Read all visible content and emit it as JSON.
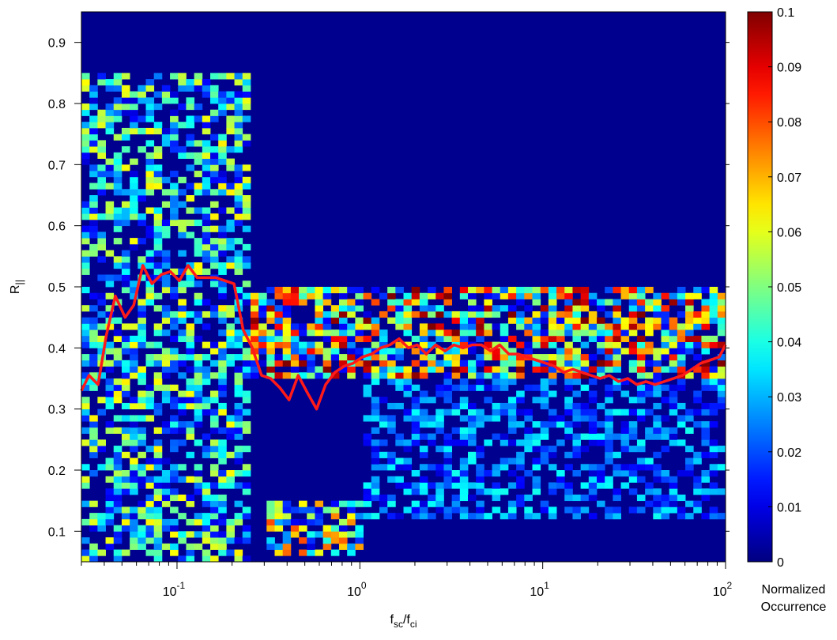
{
  "chart_data": [
    {
      "type": "heatmap",
      "xlabel": {
        "main": "f",
        "sub1": "sc",
        "slash": "/f",
        "sub2": "ci"
      },
      "ylabel": {
        "main": "R",
        "sub": "||"
      },
      "x_scale": "log",
      "xlim": [
        0.03,
        100
      ],
      "ylim": [
        0.05,
        0.95
      ],
      "x_ticks": [
        {
          "value": 0.1,
          "base": "10",
          "exp": "-1"
        },
        {
          "value": 1,
          "base": "10",
          "exp": "0"
        },
        {
          "value": 10,
          "base": "10",
          "exp": "1"
        },
        {
          "value": 100,
          "base": "10",
          "exp": "2"
        }
      ],
      "y_ticks": [
        {
          "value": 0.1,
          "label": "0.1"
        },
        {
          "value": 0.2,
          "label": "0.2"
        },
        {
          "value": 0.3,
          "label": "0.3"
        },
        {
          "value": 0.4,
          "label": "0.4"
        },
        {
          "value": 0.5,
          "label": "0.5"
        },
        {
          "value": 0.6,
          "label": "0.6"
        },
        {
          "value": 0.7,
          "label": "0.7"
        },
        {
          "value": 0.8,
          "label": "0.8"
        },
        {
          "value": 0.9,
          "label": "0.9"
        }
      ],
      "grid": false,
      "colormap": "jet",
      "background_color": "#00008f",
      "heatmap_bins": {
        "x_bins": 80,
        "y_bins": 90
      },
      "heatmap_density_bands": [
        {
          "x_range": [
            0.03,
            0.25
          ],
          "y_range": [
            0.05,
            0.85
          ],
          "intensity": 0.45
        },
        {
          "x_range": [
            0.3,
            1.0
          ],
          "y_range": [
            0.06,
            0.15
          ],
          "intensity": 0.6
        },
        {
          "x_range": [
            0.25,
            100
          ],
          "y_range": [
            0.35,
            0.5
          ],
          "intensity": 0.75
        },
        {
          "x_range": [
            1,
            100
          ],
          "y_range": [
            0.12,
            0.35
          ],
          "intensity": 0.25
        }
      ],
      "series": [
        {
          "color": "#ff1a1a",
          "x": [
            0.03,
            0.033,
            0.037,
            0.041,
            0.046,
            0.052,
            0.058,
            0.065,
            0.073,
            0.082,
            0.092,
            0.103,
            0.115,
            0.129,
            0.145,
            0.163,
            0.183,
            0.205,
            0.23,
            0.258,
            0.29,
            0.325,
            0.365,
            0.41,
            0.46,
            0.52,
            0.58,
            0.65,
            0.73,
            0.82,
            0.92,
            1.03,
            1.16,
            1.3,
            1.46,
            1.64,
            1.84,
            2.06,
            2.31,
            2.6,
            2.92,
            3.27,
            3.67,
            4.12,
            4.62,
            5.19,
            5.82,
            6.53,
            7.33,
            8.22,
            9.23,
            10.4,
            11.6,
            13.0,
            14.6,
            16.4,
            18.4,
            20.6,
            23.1,
            26.0,
            29.2,
            32.7,
            36.7,
            41.2,
            46.2,
            51.9,
            58.2,
            65.3,
            73.3,
            82.2,
            92.3,
            100
          ],
          "values": [
            0.33,
            0.355,
            0.34,
            0.42,
            0.485,
            0.45,
            0.47,
            0.535,
            0.505,
            0.52,
            0.525,
            0.51,
            0.535,
            0.515,
            0.515,
            0.515,
            0.51,
            0.505,
            0.43,
            0.4,
            0.355,
            0.35,
            0.335,
            0.315,
            0.355,
            0.325,
            0.3,
            0.34,
            0.36,
            0.37,
            0.375,
            0.385,
            0.39,
            0.4,
            0.405,
            0.415,
            0.4,
            0.405,
            0.39,
            0.405,
            0.395,
            0.405,
            0.4,
            0.405,
            0.405,
            0.395,
            0.405,
            0.39,
            0.39,
            0.385,
            0.38,
            0.375,
            0.37,
            0.36,
            0.365,
            0.36,
            0.355,
            0.35,
            0.355,
            0.345,
            0.35,
            0.34,
            0.345,
            0.34,
            0.345,
            0.35,
            0.355,
            0.365,
            0.375,
            0.38,
            0.385,
            0.405
          ]
        }
      ]
    },
    {
      "type": "colorbar",
      "range": [
        0,
        0.1
      ],
      "ticks": [
        "0",
        "0.01",
        "0.02",
        "0.03",
        "0.04",
        "0.05",
        "0.06",
        "0.07",
        "0.08",
        "0.09",
        "0.1"
      ],
      "title_line1": "Normalized",
      "title_line2": "Occurrence"
    }
  ]
}
